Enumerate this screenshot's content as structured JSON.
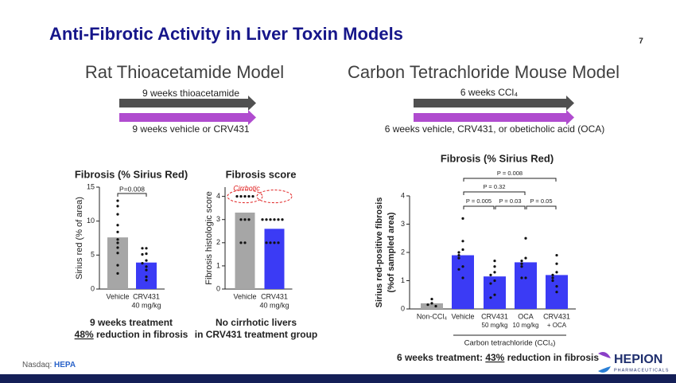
{
  "slide": {
    "title": "Anti-Fibrotic Activity in Liver Toxin Models",
    "page": "7",
    "footer_label": "Nasdaq: ",
    "footer_ticker": "HEPA",
    "logo": "HEPION",
    "logo_sub": "PHARMACEUTICALS"
  },
  "left": {
    "heading": "Rat Thioacetamide Model",
    "arrow1": "9 weeks thioacetamide",
    "arrow2": "9 weeks vehicle or CRV431"
  },
  "right": {
    "heading": "Carbon Tetrachloride Mouse Model",
    "arrow1": "6 weeks CCl₄",
    "arrow2": "6 weeks vehicle, CRV431, or obeticholic acid (OCA)"
  },
  "captions": {
    "c1_line1": "9 weeks treatment",
    "c1_emph": "48%",
    "c1_rest": " reduction in fibrosis",
    "c2_line1": "No cirrhotic livers",
    "c2_line2": "in CRV431 treatment group",
    "c3_lead": "6 weeks treatment: ",
    "c3_emph": "43%",
    "c3_rest": " reduction in fibrosis"
  },
  "chart_data": [
    {
      "type": "bar",
      "title": "Fibrosis (% Sirius Red)",
      "ylabel": "Sirius red (% of area)",
      "categories": [
        "Vehicle",
        "CRV431"
      ],
      "category_sublabels": [
        null,
        "40 mg/kg"
      ],
      "values": [
        7.6,
        3.9
      ],
      "colors": [
        "#a6a6a6",
        "#3b3bf5"
      ],
      "points": [
        [
          13,
          12.2,
          11,
          9.4,
          8.4,
          7.3,
          6.8,
          6.1,
          5.3,
          3.5,
          2.3
        ],
        [
          6,
          6,
          5.2,
          5.1,
          4.2,
          3.8,
          3.3,
          2.8,
          1.8,
          1.3
        ]
      ],
      "ylim": [
        0,
        15
      ],
      "yticks": [
        0,
        5,
        10,
        15
      ],
      "annotations": [
        "P=0.008"
      ]
    },
    {
      "type": "bar",
      "title": "Fibrosis score",
      "ylabel": "Fibrosis histologic score",
      "categories": [
        "Vehicle",
        "CRV431"
      ],
      "category_sublabels": [
        null,
        "40 mg/kg"
      ],
      "values": [
        3.3,
        2.6
      ],
      "colors": [
        "#a6a6a6",
        "#3b3bf5"
      ],
      "points": [
        [
          4,
          4,
          4,
          4,
          4,
          3,
          3,
          3,
          2,
          2
        ],
        [
          3,
          3,
          3,
          3,
          3,
          3,
          2,
          2,
          2,
          2
        ]
      ],
      "ylim": [
        0,
        4.4
      ],
      "yticks": [
        0,
        1,
        2,
        3,
        4
      ],
      "annotations": [
        "Cirrhotic"
      ]
    },
    {
      "type": "bar",
      "title": "Fibrosis (% Sirius Red)",
      "ylabel": [
        "Sirius red-positive fibrosis",
        "(%of sampled area)"
      ],
      "categories": [
        "Non-CCl₄",
        "Vehicle",
        "CRV431",
        "OCA",
        "CRV431"
      ],
      "category_sublabels": [
        null,
        null,
        "50 mg/kg",
        "10 mg/kg",
        "+ OCA"
      ],
      "xgroup_label": "Carbon tetrachloride (CCl₄)",
      "values": [
        0.2,
        1.9,
        1.15,
        1.65,
        1.2
      ],
      "colors": [
        "#a6a6a6",
        "#3b3bf5",
        "#3b3bf5",
        "#3b3bf5",
        "#3b3bf5"
      ],
      "points": [
        [
          0.35,
          0.2,
          0.15,
          0.1
        ],
        [
          3.2,
          2.4,
          2.1,
          2.0,
          1.9,
          1.8,
          1.5,
          1.4,
          1.1
        ],
        [
          1.7,
          1.5,
          1.3,
          1.2,
          1.0,
          0.9,
          0.5,
          0.4
        ],
        [
          2.5,
          1.8,
          1.7,
          1.6,
          1.5,
          1.1,
          1.1
        ],
        [
          1.9,
          1.6,
          1.3,
          1.2,
          1.1,
          1.0,
          0.8,
          0.6
        ]
      ],
      "ylim": [
        0,
        4
      ],
      "yticks": [
        0,
        1,
        2,
        3,
        4
      ],
      "annotations": [
        "P = 0.008",
        "P = 0.32",
        "P = 0.005",
        "P = 0.03",
        "P = 0.05"
      ]
    }
  ]
}
